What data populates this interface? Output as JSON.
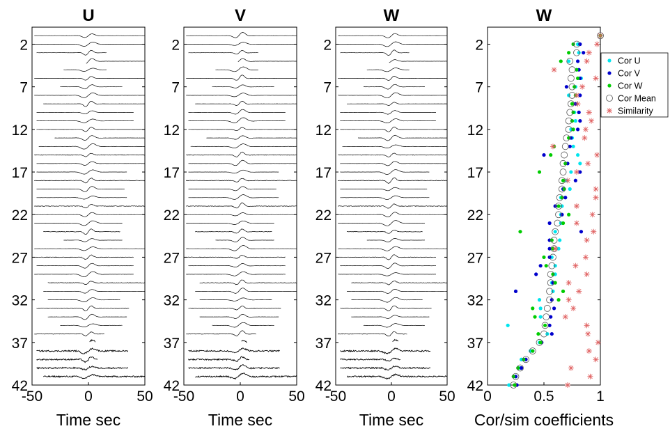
{
  "chart_data": [
    {
      "type": "line",
      "title": "U",
      "xlabel": "Time sec",
      "xlim": [
        -50,
        50
      ],
      "ylim": [
        0,
        42
      ],
      "x_ticks": [
        "-50",
        "0",
        "50"
      ],
      "y_ticks": [
        "2",
        "7",
        "12",
        "17",
        "22",
        "27",
        "32",
        "37",
        "42"
      ],
      "traces": [
        {
          "trace": 1,
          "t_start": -48,
          "t_end": 50
        },
        {
          "trace": 2,
          "t_start": -48,
          "t_end": 48
        },
        {
          "trace": 3,
          "t_start": -46,
          "t_end": 16
        },
        {
          "trace": 4,
          "t_start": -2,
          "t_end": 50
        },
        {
          "trace": 5,
          "t_start": -22,
          "t_end": 16
        },
        {
          "trace": 6,
          "t_start": -48,
          "t_end": 50
        },
        {
          "trace": 7,
          "t_start": -25,
          "t_end": 30
        },
        {
          "trace": 8,
          "t_start": -48,
          "t_end": 50
        },
        {
          "trace": 9,
          "t_start": -40,
          "t_end": 50
        },
        {
          "trace": 10,
          "t_start": -46,
          "t_end": 40
        },
        {
          "trace": 11,
          "t_start": -46,
          "t_end": 40
        },
        {
          "trace": 12,
          "t_start": -46,
          "t_end": 50
        },
        {
          "trace": 13,
          "t_start": -30,
          "t_end": 50
        },
        {
          "trace": 14,
          "t_start": -44,
          "t_end": 50
        },
        {
          "trace": 15,
          "t_start": -48,
          "t_end": 50
        },
        {
          "trace": 16,
          "t_start": -46,
          "t_end": 50
        },
        {
          "trace": 17,
          "t_start": -46,
          "t_end": 34
        },
        {
          "trace": 18,
          "t_start": -48,
          "t_end": 50
        },
        {
          "trace": 19,
          "t_start": -46,
          "t_end": 32
        },
        {
          "trace": 20,
          "t_start": -46,
          "t_end": 34
        },
        {
          "trace": 21,
          "t_start": -48,
          "t_end": 50
        },
        {
          "trace": 22,
          "t_start": -48,
          "t_end": 50
        },
        {
          "trace": 23,
          "t_start": -48,
          "t_end": 30
        },
        {
          "trace": 24,
          "t_start": -40,
          "t_end": 28
        },
        {
          "trace": 25,
          "t_start": -22,
          "t_end": 30
        },
        {
          "trace": 26,
          "t_start": -48,
          "t_end": 50
        },
        {
          "trace": 27,
          "t_start": -48,
          "t_end": 40
        },
        {
          "trace": 28,
          "t_start": -46,
          "t_end": 40
        },
        {
          "trace": 29,
          "t_start": -48,
          "t_end": 40
        },
        {
          "trace": 30,
          "t_start": -36,
          "t_end": 50
        },
        {
          "trace": 31,
          "t_start": -40,
          "t_end": 50
        },
        {
          "trace": 32,
          "t_start": -36,
          "t_end": 28
        },
        {
          "trace": 33,
          "t_start": -46,
          "t_end": 36
        },
        {
          "trace": 34,
          "t_start": -36,
          "t_end": 34
        },
        {
          "trace": 35,
          "t_start": -25,
          "t_end": 30
        },
        {
          "trace": 36,
          "t_start": -48,
          "t_end": 14
        },
        {
          "trace": 37,
          "t_start": 1,
          "t_end": 6
        },
        {
          "trace": 38,
          "t_start": -46,
          "t_end": 35
        },
        {
          "trace": 39,
          "t_start": -46,
          "t_end": 8
        },
        {
          "trace": 40,
          "t_start": -46,
          "t_end": 35
        },
        {
          "trace": 41,
          "t_start": -40,
          "t_end": 50
        }
      ]
    },
    {
      "type": "line",
      "title": "V",
      "xlabel": "Time sec",
      "xlim": [
        -50,
        50
      ],
      "ylim": [
        0,
        42
      ],
      "x_ticks": [
        "-50",
        "0",
        "50"
      ],
      "y_ticks": [
        "2",
        "7",
        "12",
        "17",
        "22",
        "27",
        "32",
        "37",
        "42"
      ],
      "traces": [
        {
          "trace": 1,
          "t_start": -48,
          "t_end": 50
        },
        {
          "trace": 2,
          "t_start": -48,
          "t_end": 48
        },
        {
          "trace": 3,
          "t_start": -46,
          "t_end": 16
        },
        {
          "trace": 4,
          "t_start": -2,
          "t_end": 50
        },
        {
          "trace": 5,
          "t_start": -22,
          "t_end": 16
        },
        {
          "trace": 6,
          "t_start": -48,
          "t_end": 50
        },
        {
          "trace": 7,
          "t_start": -25,
          "t_end": 30
        },
        {
          "trace": 8,
          "t_start": -48,
          "t_end": 50
        },
        {
          "trace": 9,
          "t_start": -40,
          "t_end": 50
        },
        {
          "trace": 10,
          "t_start": -46,
          "t_end": 40
        },
        {
          "trace": 11,
          "t_start": -46,
          "t_end": 40
        },
        {
          "trace": 12,
          "t_start": -46,
          "t_end": 50
        },
        {
          "trace": 13,
          "t_start": -30,
          "t_end": 50
        },
        {
          "trace": 14,
          "t_start": -44,
          "t_end": 50
        },
        {
          "trace": 15,
          "t_start": -48,
          "t_end": 50
        },
        {
          "trace": 16,
          "t_start": -46,
          "t_end": 50
        },
        {
          "trace": 17,
          "t_start": -46,
          "t_end": 34
        },
        {
          "trace": 18,
          "t_start": -48,
          "t_end": 50
        },
        {
          "trace": 19,
          "t_start": -46,
          "t_end": 32
        },
        {
          "trace": 20,
          "t_start": -46,
          "t_end": 34
        },
        {
          "trace": 21,
          "t_start": -48,
          "t_end": 50
        },
        {
          "trace": 22,
          "t_start": -48,
          "t_end": 50
        },
        {
          "trace": 23,
          "t_start": -48,
          "t_end": 30
        },
        {
          "trace": 24,
          "t_start": -40,
          "t_end": 28
        },
        {
          "trace": 25,
          "t_start": -22,
          "t_end": 30
        },
        {
          "trace": 26,
          "t_start": -48,
          "t_end": 50
        },
        {
          "trace": 27,
          "t_start": -48,
          "t_end": 40
        },
        {
          "trace": 28,
          "t_start": -46,
          "t_end": 40
        },
        {
          "trace": 29,
          "t_start": -48,
          "t_end": 40
        },
        {
          "trace": 30,
          "t_start": -36,
          "t_end": 50
        },
        {
          "trace": 31,
          "t_start": -40,
          "t_end": 50
        },
        {
          "trace": 32,
          "t_start": -36,
          "t_end": 28
        },
        {
          "trace": 33,
          "t_start": -46,
          "t_end": 36
        },
        {
          "trace": 34,
          "t_start": -36,
          "t_end": 34
        },
        {
          "trace": 35,
          "t_start": -25,
          "t_end": 30
        },
        {
          "trace": 36,
          "t_start": -48,
          "t_end": 14
        },
        {
          "trace": 37,
          "t_start": 1,
          "t_end": 6
        },
        {
          "trace": 38,
          "t_start": -46,
          "t_end": 35
        },
        {
          "trace": 39,
          "t_start": -46,
          "t_end": 8
        },
        {
          "trace": 40,
          "t_start": -46,
          "t_end": 35
        },
        {
          "trace": 41,
          "t_start": -40,
          "t_end": 50
        }
      ]
    },
    {
      "type": "line",
      "title": "W",
      "xlabel": "Time sec",
      "xlim": [
        -50,
        50
      ],
      "ylim": [
        0,
        42
      ],
      "x_ticks": [
        "-50",
        "0",
        "50"
      ],
      "y_ticks": [
        "2",
        "7",
        "12",
        "17",
        "22",
        "27",
        "32",
        "37",
        "42"
      ],
      "traces": [
        {
          "trace": 1,
          "t_start": -48,
          "t_end": 50
        },
        {
          "trace": 2,
          "t_start": -48,
          "t_end": 48
        },
        {
          "trace": 3,
          "t_start": -46,
          "t_end": 16
        },
        {
          "trace": 4,
          "t_start": -2,
          "t_end": 50
        },
        {
          "trace": 5,
          "t_start": -22,
          "t_end": 16
        },
        {
          "trace": 6,
          "t_start": -48,
          "t_end": 50
        },
        {
          "trace": 7,
          "t_start": -25,
          "t_end": 30
        },
        {
          "trace": 8,
          "t_start": -48,
          "t_end": 50
        },
        {
          "trace": 9,
          "t_start": -40,
          "t_end": 50
        },
        {
          "trace": 10,
          "t_start": -46,
          "t_end": 40
        },
        {
          "trace": 11,
          "t_start": -46,
          "t_end": 40
        },
        {
          "trace": 12,
          "t_start": -46,
          "t_end": 50
        },
        {
          "trace": 13,
          "t_start": -30,
          "t_end": 50
        },
        {
          "trace": 14,
          "t_start": -44,
          "t_end": 50
        },
        {
          "trace": 15,
          "t_start": -48,
          "t_end": 50
        },
        {
          "trace": 16,
          "t_start": -46,
          "t_end": 50
        },
        {
          "trace": 17,
          "t_start": -46,
          "t_end": 34
        },
        {
          "trace": 18,
          "t_start": -48,
          "t_end": 50
        },
        {
          "trace": 19,
          "t_start": -46,
          "t_end": 32
        },
        {
          "trace": 20,
          "t_start": -46,
          "t_end": 34
        },
        {
          "trace": 21,
          "t_start": -48,
          "t_end": 50
        },
        {
          "trace": 22,
          "t_start": -48,
          "t_end": 50
        },
        {
          "trace": 23,
          "t_start": -48,
          "t_end": 30
        },
        {
          "trace": 24,
          "t_start": -40,
          "t_end": 28
        },
        {
          "trace": 25,
          "t_start": -22,
          "t_end": 30
        },
        {
          "trace": 26,
          "t_start": -48,
          "t_end": 50
        },
        {
          "trace": 27,
          "t_start": -48,
          "t_end": 40
        },
        {
          "trace": 28,
          "t_start": -46,
          "t_end": 40
        },
        {
          "trace": 29,
          "t_start": -48,
          "t_end": 40
        },
        {
          "trace": 30,
          "t_start": -36,
          "t_end": 50
        },
        {
          "trace": 31,
          "t_start": -40,
          "t_end": 50
        },
        {
          "trace": 32,
          "t_start": -36,
          "t_end": 28
        },
        {
          "trace": 33,
          "t_start": -46,
          "t_end": 36
        },
        {
          "trace": 34,
          "t_start": -36,
          "t_end": 34
        },
        {
          "trace": 35,
          "t_start": -25,
          "t_end": 30
        },
        {
          "trace": 36,
          "t_start": -48,
          "t_end": 14
        },
        {
          "trace": 37,
          "t_start": 1,
          "t_end": 6
        },
        {
          "trace": 38,
          "t_start": -46,
          "t_end": 35
        },
        {
          "trace": 39,
          "t_start": -46,
          "t_end": 8
        },
        {
          "trace": 40,
          "t_start": -46,
          "t_end": 35
        },
        {
          "trace": 41,
          "t_start": -40,
          "t_end": 50
        }
      ]
    },
    {
      "type": "scatter",
      "title": "W",
      "xlabel": "Cor/sim coefficients",
      "xlim": [
        0,
        1
      ],
      "ylim": [
        0,
        42
      ],
      "x_ticks": [
        "0",
        "0.5",
        "1"
      ],
      "y_ticks": [
        "2",
        "7",
        "12",
        "17",
        "22",
        "27",
        "32",
        "37",
        "42"
      ],
      "legend_position": "right",
      "series": [
        {
          "name": "Cor U",
          "color": "#00e5ee",
          "marker": "dot",
          "values": [
            1.0,
            0.8,
            0.81,
            0.72,
            0.79,
            0.83,
            0.78,
            0.72,
            0.79,
            0.77,
            0.78,
            0.74,
            0.75,
            0.76,
            0.8,
            0.82,
            0.74,
            0.7,
            0.73,
            0.65,
            0.66,
            0.65,
            0.65,
            0.6,
            0.64,
            0.63,
            0.57,
            0.6,
            0.6,
            0.57,
            0.58,
            0.46,
            0.47,
            0.47,
            0.18,
            0.53,
            0.46,
            0.38,
            0.3,
            0.29,
            0.25,
            0.19
          ]
        },
        {
          "name": "Cor V",
          "color": "#0000cc",
          "marker": "dot",
          "values": [
            1.0,
            0.82,
            0.85,
            0.8,
            0.81,
            0.82,
            0.7,
            0.82,
            0.78,
            0.81,
            0.82,
            0.8,
            0.74,
            0.73,
            0.5,
            0.71,
            0.82,
            0.78,
            0.67,
            0.69,
            0.6,
            0.66,
            0.55,
            0.83,
            0.55,
            0.55,
            0.55,
            0.47,
            0.43,
            0.58,
            0.25,
            0.57,
            0.59,
            0.56,
            0.55,
            0.57,
            0.48,
            0.4,
            0.34,
            0.3,
            0.25,
            0.26
          ]
        },
        {
          "name": "Cor W",
          "color": "#00cc00",
          "marker": "dot",
          "values": [
            1.0,
            0.76,
            0.72,
            0.65,
            0.79,
            0.8,
            0.77,
            0.78,
            0.75,
            0.76,
            0.75,
            0.76,
            0.72,
            0.59,
            0.56,
            0.69,
            0.46,
            0.67,
            0.68,
            0.66,
            0.63,
            0.72,
            0.67,
            0.29,
            0.57,
            0.58,
            0.5,
            0.52,
            0.58,
            0.6,
            0.67,
            0.63,
            0.4,
            0.42,
            0.51,
            0.45,
            0.47,
            0.4,
            0.32,
            0.27,
            0.23,
            0.24
          ]
        },
        {
          "name": "Cor Mean",
          "color": "#555555",
          "marker": "circle",
          "values": [
            1.0,
            0.79,
            0.79,
            0.73,
            0.75,
            0.74,
            0.75,
            0.75,
            0.74,
            0.73,
            0.72,
            0.72,
            0.7,
            0.69,
            0.68,
            0.67,
            0.67,
            0.66,
            0.66,
            0.64,
            0.63,
            0.63,
            0.62,
            0.6,
            0.59,
            0.59,
            0.58,
            0.57,
            0.56,
            0.56,
            0.55,
            0.55,
            0.53,
            0.52,
            0.51,
            0.5,
            0.46,
            0.4,
            0.34,
            0.29,
            0.25,
            0.23
          ]
        },
        {
          "name": "Similarity",
          "color": "#e06060",
          "marker": "asterisk",
          "values": [
            1.0,
            0.97,
            0.9,
            0.88,
            0.59,
            0.96,
            0.84,
            0.79,
            0.8,
            0.9,
            0.92,
            0.87,
            0.86,
            0.58,
            0.97,
            0.89,
            0.79,
            0.71,
            0.96,
            0.96,
            0.79,
            0.93,
            0.79,
            0.94,
            0.88,
            0.6,
            0.87,
            0.78,
            0.88,
            0.72,
            0.81,
            0.72,
            0.76,
            0.69,
            0.88,
            0.89,
            0.98,
            0.9,
            0.96,
            0.74,
            0.91,
            0.71
          ]
        }
      ]
    }
  ]
}
